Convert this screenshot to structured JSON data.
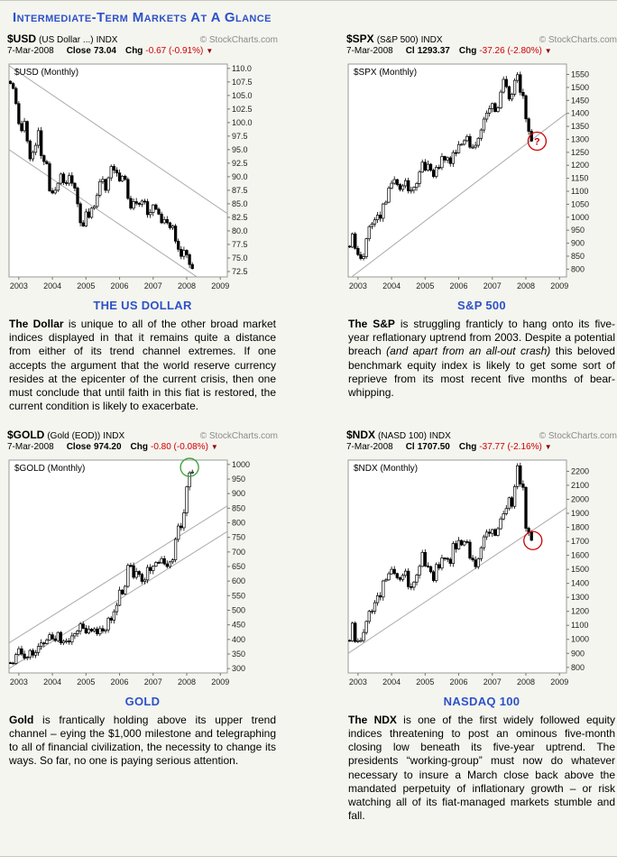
{
  "page_title": "Intermediate-Term Markets At A Glance",
  "colors": {
    "accent_blue": "#2d51c8",
    "negative_red": "#cc0000",
    "arrow_maroon": "#8b0000",
    "copyright_gray": "#8a8a8a",
    "trendline_gray": "#aaaaaa",
    "annotation_green": "#33a133"
  },
  "charts": [
    {
      "symbol": "$USD",
      "symbol_desc": "(US Dollar ...)",
      "symbol_type": "INDX",
      "copyright": "© StockCharts.com",
      "date": "7-Mar-2008",
      "close_label": "Close",
      "close": "73.04",
      "chg_label": "Chg",
      "chg": "-0.67 (-0.91%)",
      "arrow": "▼",
      "heading": "THE US DOLLAR",
      "paragraph": [
        {
          "text": "The Dollar",
          "bold": true
        },
        {
          "text": " is unique to all of the other broad market indices displayed in that it remains quite a distance from either of its trend channel extremes.  If one accepts the argument that the world reserve currency resides at the epicenter of the current crisis, then one must conclude that until faith in this fiat is restored, the current condition is likely to exacerbate."
        }
      ]
    },
    {
      "symbol": "$SPX",
      "symbol_desc": "(S&P 500)",
      "symbol_type": "INDX",
      "copyright": "© StockCharts.com",
      "date": "7-Mar-2008",
      "close_label": "Cl",
      "close": "1293.37",
      "chg_label": "Chg",
      "chg": "-37.26 (-2.80%)",
      "arrow": "▼",
      "heading": "S&P 500",
      "paragraph": [
        {
          "text": "The S&P",
          "bold": true
        },
        {
          "text": " is struggling franticly to hang onto its five-year reflationary uptrend from 2003.  Despite a potential breach "
        },
        {
          "text": "(and apart from an all-out crash)",
          "italic": true
        },
        {
          "text": " this beloved benchmark equity index is likely to get some sort of reprieve from its most recent five months of bear-whipping."
        }
      ]
    },
    {
      "symbol": "$GOLD",
      "symbol_desc": "(Gold (EOD))",
      "symbol_type": "INDX",
      "copyright": "© StockCharts.com",
      "date": "7-Mar-2008",
      "close_label": "Close",
      "close": "974.20",
      "chg_label": "Chg",
      "chg": "-0.80 (-0.08%)",
      "arrow": "▼",
      "heading": "GOLD",
      "paragraph": [
        {
          "text": "Gold",
          "bold": true
        },
        {
          "text": " is frantically holding above its upper trend channel – eying the $1,000 milestone and telegraphing to all of financial civilization, the necessity to change its ways. So far, no one is paying serious attention."
        }
      ]
    },
    {
      "symbol": "$NDX",
      "symbol_desc": "(NASD 100)",
      "symbol_type": "INDX",
      "copyright": "© StockCharts.com",
      "date": "7-Mar-2008",
      "close_label": "Cl",
      "close": "1707.50",
      "chg_label": "Chg",
      "chg": "-37.77 (-2.16%)",
      "arrow": "▼",
      "heading": "NASDAQ 100",
      "paragraph": [
        {
          "text": "The NDX",
          "bold": true
        },
        {
          "text": " is one of the first widely followed equity indices threatening to post an ominous five-month closing low beneath its five-year uptrend.  The presidents “working-group” must now do whatever necessary to insure a March close back above the mandated perpetuity of inflationary growth – or risk watching all of its fiat-managed markets stumble and fall."
        }
      ]
    }
  ],
  "chart_data": [
    {
      "type": "candlestick",
      "title": "$USD (Monthly)",
      "interval": "monthly",
      "start": "2002-10",
      "closes": [
        107.2,
        106.3,
        103.5,
        99.8,
        98.5,
        100.2,
        96.6,
        93.3,
        94.5,
        95.8,
        98.5,
        93.9,
        92.8,
        92.4,
        87.4,
        87.0,
        87.5,
        88.8,
        90.5,
        88.9,
        88.8,
        90.2,
        88.8,
        87.9,
        85.0,
        81.5,
        80.9,
        83.5,
        82.5,
        84.2,
        84.5,
        86.6,
        89.1,
        89.5,
        87.5,
        89.8,
        91.9,
        91.2,
        90.7,
        89.2,
        90.1,
        89.5,
        86.0,
        84.2,
        85.4,
        85.1,
        84.9,
        85.5,
        85.4,
        83.0,
        83.4,
        84.8,
        84.0,
        83.1,
        81.5,
        82.1,
        81.5,
        80.6,
        80.9,
        78.1,
        76.6,
        75.3,
        76.4,
        75.6,
        73.8,
        73.04
      ],
      "ylim": [
        71.5,
        110.8
      ],
      "yticks": {
        "min": 72.5,
        "max": 110.0,
        "step": 2.5,
        "decimals": 1
      },
      "xticks": [
        {
          "label": "2003",
          "m": 3
        },
        {
          "label": "2004",
          "m": 15
        },
        {
          "label": "2005",
          "m": 27
        },
        {
          "label": "2006",
          "m": 39
        },
        {
          "label": "2007",
          "m": 51
        },
        {
          "label": "2008",
          "m": 63
        },
        {
          "label": "2009",
          "m": 75
        }
      ],
      "axis_months": 78,
      "xlabel": "",
      "ylabel": "",
      "legend": "none",
      "grid": false,
      "trendlines": [
        {
          "m1": 0,
          "v1": 110.5,
          "m2": 78,
          "v2": 83.2
        },
        {
          "m1": 0,
          "v1": 95.0,
          "m2": 78,
          "v2": 67.7
        }
      ],
      "annotations": [],
      "bar_color": "#000000",
      "trend_color": "#aaaaaa"
    },
    {
      "type": "candlestick",
      "title": "$SPX (Monthly)",
      "interval": "monthly",
      "start": "2002-10",
      "closes": [
        885,
        936,
        880,
        856,
        841,
        848,
        917,
        964,
        974,
        990,
        1008,
        996,
        1051,
        1058,
        1112,
        1131,
        1145,
        1126,
        1107,
        1121,
        1141,
        1102,
        1104,
        1115,
        1130,
        1174,
        1212,
        1181,
        1204,
        1181,
        1157,
        1192,
        1191,
        1234,
        1220,
        1229,
        1207,
        1249,
        1248,
        1280,
        1281,
        1295,
        1311,
        1270,
        1270,
        1277,
        1304,
        1336,
        1378,
        1401,
        1418,
        1438,
        1407,
        1421,
        1482,
        1531,
        1503,
        1455,
        1474,
        1527,
        1549,
        1481,
        1468,
        1379,
        1331,
        1293.37
      ],
      "ylim": [
        770,
        1590
      ],
      "yticks": {
        "min": 800,
        "max": 1550,
        "step": 50,
        "decimals": 0
      },
      "xticks": [
        {
          "label": "2003",
          "m": 3
        },
        {
          "label": "2004",
          "m": 15
        },
        {
          "label": "2005",
          "m": 27
        },
        {
          "label": "2006",
          "m": 39
        },
        {
          "label": "2007",
          "m": 51
        },
        {
          "label": "2008",
          "m": 63
        },
        {
          "label": "2009",
          "m": 75
        }
      ],
      "axis_months": 78,
      "xlabel": "",
      "ylabel": "",
      "legend": "none",
      "grid": false,
      "trendlines": [
        {
          "m1": 0,
          "v1": 760,
          "m2": 78,
          "v2": 1400
        }
      ],
      "annotations": [
        {
          "m": 67.5,
          "v": 1293,
          "r": 10,
          "color": "#cc0000",
          "text": "?"
        }
      ],
      "bar_color": "#000000",
      "trend_color": "#aaaaaa"
    },
    {
      "type": "candlestick",
      "title": "$GOLD (Monthly)",
      "interval": "monthly",
      "start": "2002-10",
      "closes": [
        319,
        318,
        348,
        368,
        350,
        336,
        339,
        362,
        346,
        355,
        376,
        388,
        386,
        398,
        416,
        402,
        396,
        424,
        388,
        394,
        395,
        391,
        412,
        420,
        429,
        453,
        438,
        422,
        435,
        429,
        436,
        419,
        437,
        429,
        433,
        473,
        466,
        495,
        517,
        569,
        556,
        582,
        654,
        653,
        613,
        633,
        623,
        599,
        604,
        647,
        636,
        651,
        664,
        663,
        677,
        659,
        650,
        666,
        673,
        743,
        789,
        783,
        834,
        923,
        971,
        974.2
      ],
      "ylim": [
        285,
        1015
      ],
      "yticks": {
        "min": 300,
        "max": 1000,
        "step": 50,
        "decimals": 0
      },
      "xticks": [
        {
          "label": "2003",
          "m": 3
        },
        {
          "label": "2004",
          "m": 15
        },
        {
          "label": "2005",
          "m": 27
        },
        {
          "label": "2006",
          "m": 39
        },
        {
          "label": "2007",
          "m": 51
        },
        {
          "label": "2008",
          "m": 63
        },
        {
          "label": "2009",
          "m": 75
        }
      ],
      "axis_months": 78,
      "xlabel": "",
      "ylabel": "",
      "legend": "none",
      "grid": false,
      "trendlines": [
        {
          "m1": 0,
          "v1": 300,
          "m2": 78,
          "v2": 770
        },
        {
          "m1": 0,
          "v1": 388,
          "m2": 78,
          "v2": 858
        }
      ],
      "annotations": [
        {
          "m": 64.5,
          "v": 990,
          "r": 10,
          "color": "#33a133",
          "text": ""
        }
      ],
      "bar_color": "#000000",
      "trend_color": "#aaaaaa"
    },
    {
      "type": "candlestick",
      "title": "$NDX (Monthly)",
      "interval": "monthly",
      "start": "2002-10",
      "closes": [
        989,
        1116,
        984,
        990,
        992,
        1049,
        1128,
        1200,
        1201,
        1262,
        1312,
        1302,
        1417,
        1425,
        1468,
        1500,
        1470,
        1440,
        1428,
        1457,
        1487,
        1376,
        1372,
        1409,
        1459,
        1521,
        1621,
        1524,
        1519,
        1482,
        1420,
        1534,
        1509,
        1581,
        1578,
        1572,
        1542,
        1684,
        1645,
        1706,
        1674,
        1698,
        1694,
        1580,
        1567,
        1519,
        1576,
        1654,
        1732,
        1766,
        1757,
        1784,
        1742,
        1790,
        1860,
        1897,
        1934,
        2011,
        1950,
        2091,
        2239,
        2109,
        2085,
        1793,
        1764,
        1707.5
      ],
      "ylim": [
        760,
        2280
      ],
      "yticks": {
        "min": 800,
        "max": 2200,
        "step": 100,
        "decimals": 0
      },
      "xticks": [
        {
          "label": "2003",
          "m": 3
        },
        {
          "label": "2004",
          "m": 15
        },
        {
          "label": "2005",
          "m": 27
        },
        {
          "label": "2006",
          "m": 39
        },
        {
          "label": "2007",
          "m": 51
        },
        {
          "label": "2008",
          "m": 63
        },
        {
          "label": "2009",
          "m": 75
        }
      ],
      "axis_months": 78,
      "xlabel": "",
      "ylabel": "",
      "legend": "none",
      "grid": false,
      "trendlines": [
        {
          "m1": 0,
          "v1": 900,
          "m2": 78,
          "v2": 1940
        }
      ],
      "annotations": [
        {
          "m": 66,
          "v": 1705,
          "r": 10,
          "color": "#cc0000",
          "text": ""
        }
      ],
      "bar_color": "#000000",
      "trend_color": "#aaaaaa"
    }
  ]
}
